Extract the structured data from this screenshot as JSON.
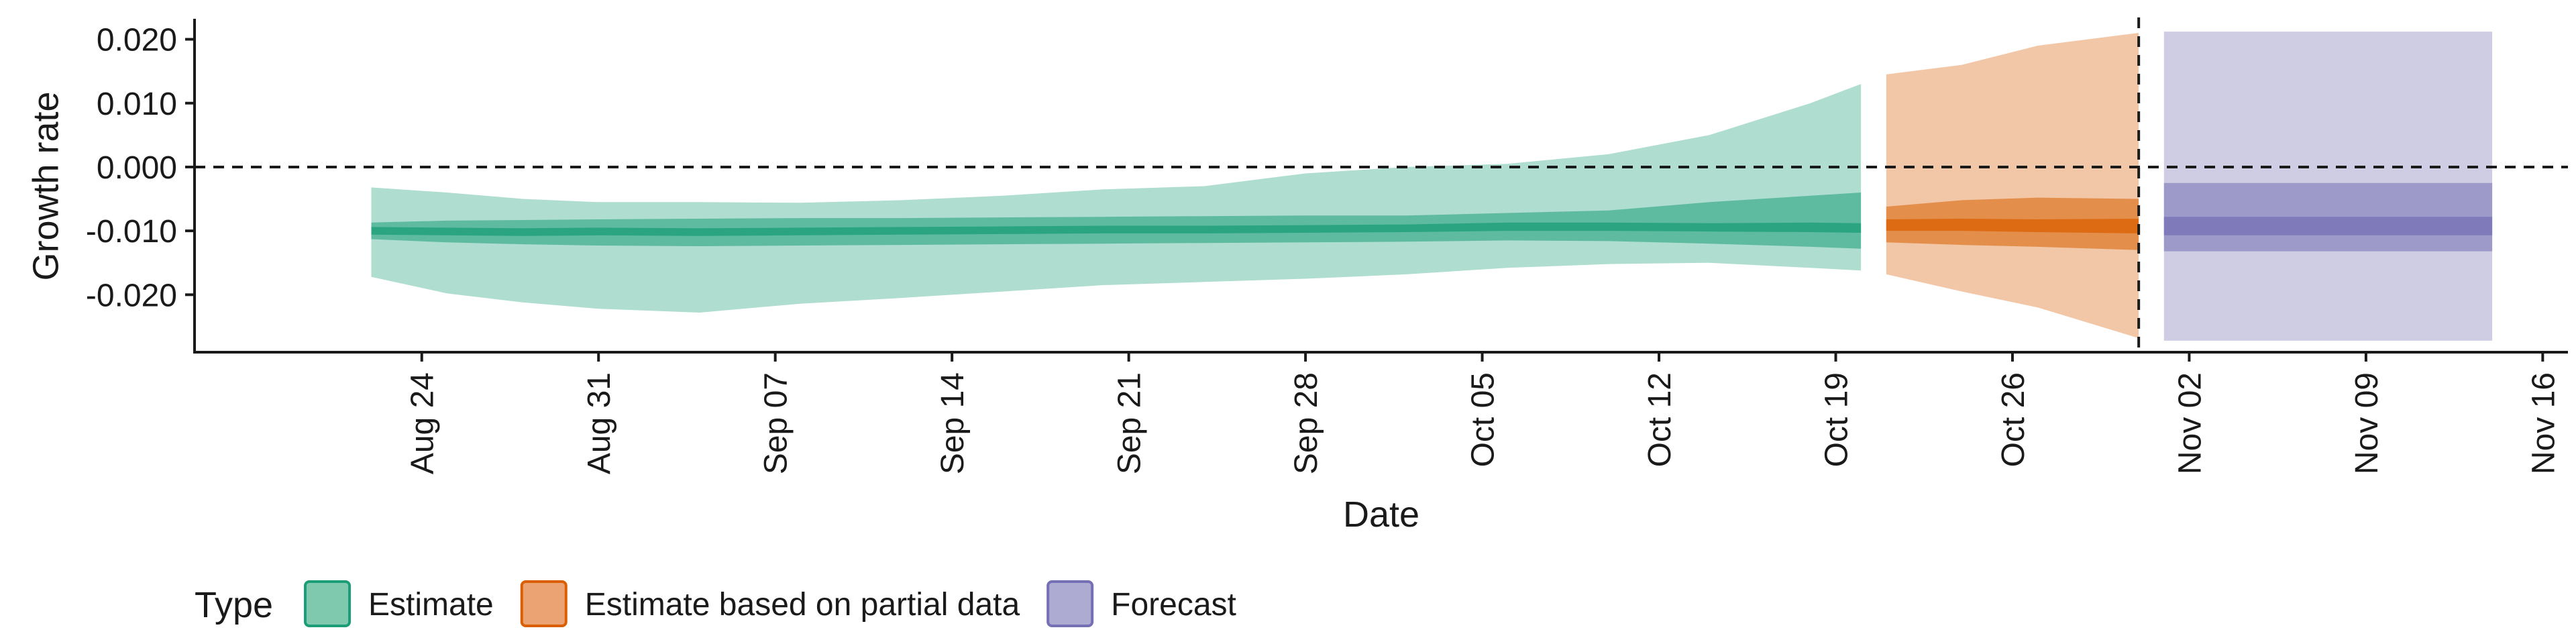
{
  "chart_data": {
    "type": "area",
    "title": "",
    "xlabel": "Date",
    "ylabel": "Growth rate",
    "x_axis": {
      "type": "date",
      "range": [
        "2020-08-15",
        "2020-11-17"
      ],
      "ticks": [
        {
          "date": "2020-08-24",
          "label": "Aug 24"
        },
        {
          "date": "2020-08-31",
          "label": "Aug 31"
        },
        {
          "date": "2020-09-07",
          "label": "Sep 07"
        },
        {
          "date": "2020-09-14",
          "label": "Sep 14"
        },
        {
          "date": "2020-09-21",
          "label": "Sep 21"
        },
        {
          "date": "2020-09-28",
          "label": "Sep 28"
        },
        {
          "date": "2020-10-05",
          "label": "Oct 05"
        },
        {
          "date": "2020-10-12",
          "label": "Oct 12"
        },
        {
          "date": "2020-10-19",
          "label": "Oct 19"
        },
        {
          "date": "2020-10-26",
          "label": "Oct 26"
        },
        {
          "date": "2020-11-02",
          "label": "Nov 02"
        },
        {
          "date": "2020-11-09",
          "label": "Nov 09"
        },
        {
          "date": "2020-11-16",
          "label": "Nov 16"
        }
      ]
    },
    "y_axis": {
      "range": [
        -0.029,
        0.023
      ],
      "ticks": [
        {
          "value": 0.02,
          "label": "0.020"
        },
        {
          "value": 0.01,
          "label": "0.010"
        },
        {
          "value": 0.0,
          "label": "0.000"
        },
        {
          "value": -0.01,
          "label": "-0.010"
        },
        {
          "value": -0.02,
          "label": "-0.020"
        }
      ]
    },
    "reference_lines": [
      {
        "axis": "y",
        "value": 0.0,
        "style": "dashed"
      },
      {
        "axis": "x",
        "date": "2020-10-31",
        "style": "dashed"
      }
    ],
    "grid": false,
    "legend": {
      "title": "Type",
      "position": "bottom-left",
      "items": [
        {
          "label": "Estimate",
          "fill": "#7fc9ae",
          "stroke": "#1b9e77"
        },
        {
          "label": "Estimate based on partial data",
          "fill": "#eba374",
          "stroke": "#d95f02"
        },
        {
          "label": "Forecast",
          "fill": "#aeabd3",
          "stroke": "#7570b3"
        }
      ]
    },
    "series": [
      {
        "type_label": "Estimate",
        "color": "#1b9e77",
        "points": [
          {
            "date": "2020-08-22",
            "median": -0.01,
            "ci20": [
              -0.0106,
              -0.0094
            ],
            "ci50": [
              -0.0113,
              -0.0087
            ],
            "ci90": [
              -0.0172,
              -0.0032
            ]
          },
          {
            "date": "2020-08-25",
            "median": -0.0101,
            "ci20": [
              -0.0107,
              -0.0095
            ],
            "ci50": [
              -0.0118,
              -0.0084
            ],
            "ci90": [
              -0.0198,
              -0.004
            ]
          },
          {
            "date": "2020-08-28",
            "median": -0.0102,
            "ci20": [
              -0.0108,
              -0.0096
            ],
            "ci50": [
              -0.0121,
              -0.0083
            ],
            "ci90": [
              -0.0212,
              -0.005
            ]
          },
          {
            "date": "2020-08-31",
            "median": -0.0101,
            "ci20": [
              -0.0107,
              -0.0095
            ],
            "ci50": [
              -0.0123,
              -0.0082
            ],
            "ci90": [
              -0.0222,
              -0.0055
            ]
          },
          {
            "date": "2020-09-04",
            "median": -0.0102,
            "ci20": [
              -0.0108,
              -0.0096
            ],
            "ci50": [
              -0.0124,
              -0.0081
            ],
            "ci90": [
              -0.0228,
              -0.0055
            ]
          },
          {
            "date": "2020-09-08",
            "median": -0.0101,
            "ci20": [
              -0.0107,
              -0.0095
            ],
            "ci50": [
              -0.0123,
              -0.008
            ],
            "ci90": [
              -0.0214,
              -0.0056
            ]
          },
          {
            "date": "2020-09-12",
            "median": -0.01,
            "ci20": [
              -0.0106,
              -0.0094
            ],
            "ci50": [
              -0.0122,
              -0.008
            ],
            "ci90": [
              -0.0205,
              -0.0052
            ]
          },
          {
            "date": "2020-09-16",
            "median": -0.0099,
            "ci20": [
              -0.0105,
              -0.0093
            ],
            "ci50": [
              -0.0121,
              -0.0079
            ],
            "ci90": [
              -0.0195,
              -0.0045
            ]
          },
          {
            "date": "2020-09-20",
            "median": -0.0098,
            "ci20": [
              -0.0104,
              -0.0092
            ],
            "ci50": [
              -0.012,
              -0.0078
            ],
            "ci90": [
              -0.0185,
              -0.0035
            ]
          },
          {
            "date": "2020-09-24",
            "median": -0.0098,
            "ci20": [
              -0.0104,
              -0.0092
            ],
            "ci50": [
              -0.0119,
              -0.0077
            ],
            "ci90": [
              -0.018,
              -0.003
            ]
          },
          {
            "date": "2020-09-28",
            "median": -0.0097,
            "ci20": [
              -0.0103,
              -0.0091
            ],
            "ci50": [
              -0.0118,
              -0.0076
            ],
            "ci90": [
              -0.0175,
              -0.001
            ]
          },
          {
            "date": "2020-10-02",
            "median": -0.0096,
            "ci20": [
              -0.0102,
              -0.009
            ],
            "ci50": [
              -0.0117,
              -0.0076
            ],
            "ci90": [
              -0.0168,
              0.0
            ]
          },
          {
            "date": "2020-10-06",
            "median": -0.0093,
            "ci20": [
              -0.01,
              -0.0087
            ],
            "ci50": [
              -0.0115,
              -0.0072
            ],
            "ci90": [
              -0.0158,
              0.0005
            ]
          },
          {
            "date": "2020-10-10",
            "median": -0.0093,
            "ci20": [
              -0.01,
              -0.0087
            ],
            "ci50": [
              -0.0116,
              -0.0068
            ],
            "ci90": [
              -0.0152,
              0.002
            ]
          },
          {
            "date": "2020-10-14",
            "median": -0.0094,
            "ci20": [
              -0.0101,
              -0.0088
            ],
            "ci50": [
              -0.012,
              -0.0055
            ],
            "ci90": [
              -0.015,
              0.005
            ]
          },
          {
            "date": "2020-10-18",
            "median": -0.0094,
            "ci20": [
              -0.0102,
              -0.0087
            ],
            "ci50": [
              -0.0125,
              -0.0045
            ],
            "ci90": [
              -0.0158,
              0.01
            ]
          },
          {
            "date": "2020-10-20",
            "median": -0.0095,
            "ci20": [
              -0.0103,
              -0.0088
            ],
            "ci50": [
              -0.0128,
              -0.004
            ],
            "ci90": [
              -0.0162,
              0.013
            ]
          }
        ]
      },
      {
        "type_label": "Estimate based on partial data",
        "color": "#d95f02",
        "points": [
          {
            "date": "2020-10-21",
            "median": -0.0092,
            "ci20": [
              -0.01,
              -0.0082
            ],
            "ci50": [
              -0.0118,
              -0.0062
            ],
            "ci90": [
              -0.0168,
              0.0145
            ]
          },
          {
            "date": "2020-10-24",
            "median": -0.0091,
            "ci20": [
              -0.01,
              -0.0081
            ],
            "ci50": [
              -0.0122,
              -0.0052
            ],
            "ci90": [
              -0.0195,
              0.016
            ]
          },
          {
            "date": "2020-10-27",
            "median": -0.0092,
            "ci20": [
              -0.0102,
              -0.0082
            ],
            "ci50": [
              -0.0125,
              -0.0048
            ],
            "ci90": [
              -0.022,
              0.019
            ]
          },
          {
            "date": "2020-10-31",
            "median": -0.0093,
            "ci20": [
              -0.0104,
              -0.0081
            ],
            "ci50": [
              -0.013,
              -0.005
            ],
            "ci90": [
              -0.0268,
              0.021
            ]
          }
        ]
      },
      {
        "type_label": "Forecast",
        "color": "#7570b3",
        "points": [
          {
            "date": "2020-11-01",
            "median": -0.0092,
            "ci20": [
              -0.0107,
              -0.0078
            ],
            "ci50": [
              -0.0132,
              -0.0025
            ],
            "ci90": [
              -0.0272,
              0.0212
            ]
          },
          {
            "date": "2020-11-14",
            "median": -0.0092,
            "ci20": [
              -0.0107,
              -0.0078
            ],
            "ci50": [
              -0.0132,
              -0.0025
            ],
            "ci90": [
              -0.0272,
              0.0212
            ]
          }
        ]
      }
    ]
  }
}
